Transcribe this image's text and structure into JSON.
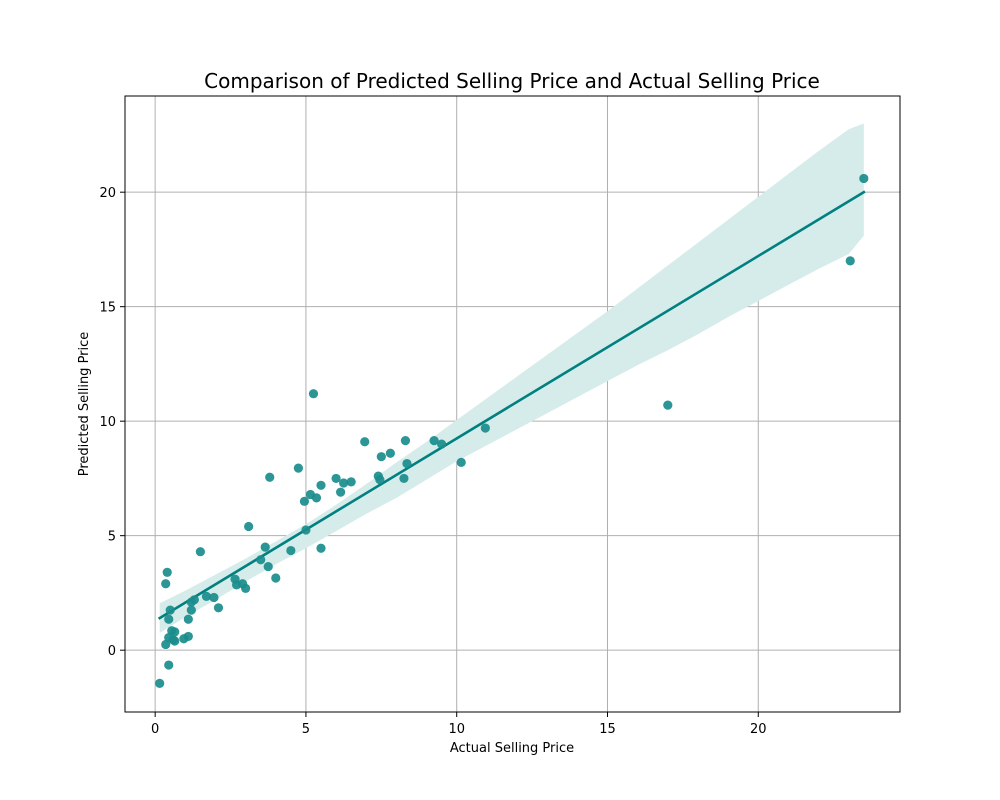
{
  "chart_data": {
    "type": "scatter",
    "title": "Comparison of Predicted Selling Price and Actual Selling Price",
    "xlabel": "Actual Selling Price",
    "ylabel": "Predicted Selling Price",
    "xlim": [
      -1,
      24.7
    ],
    "ylim": [
      -2.7,
      24.2
    ],
    "x_ticks": [
      0,
      5,
      10,
      15,
      20
    ],
    "y_ticks": [
      0,
      5,
      10,
      15,
      20
    ],
    "grid": true,
    "colors": {
      "points": "#1a8c8c",
      "regression_line": "#008080",
      "confidence_band": "#d6ecea",
      "grid": "#b0b0b0",
      "axes": "#000000"
    },
    "regression": {
      "x": [
        0.15,
        23.5
      ],
      "y": [
        1.4,
        20.0
      ]
    },
    "confidence_band": {
      "x": [
        0.15,
        1,
        2,
        3,
        4,
        5,
        6,
        7,
        8,
        9,
        10,
        11,
        12,
        13,
        14,
        15,
        16,
        17,
        18,
        19,
        20,
        21,
        22,
        23,
        23.5
      ],
      "upper": [
        2.05,
        2.6,
        3.3,
        4.0,
        4.75,
        5.5,
        6.35,
        7.25,
        8.2,
        9.1,
        10.05,
        11.0,
        11.95,
        12.9,
        13.85,
        14.8,
        15.8,
        16.8,
        17.8,
        18.8,
        19.8,
        20.8,
        21.8,
        22.75,
        23.0
      ],
      "lower": [
        0.75,
        1.45,
        2.2,
        3.0,
        3.75,
        4.45,
        5.2,
        5.95,
        6.65,
        7.45,
        8.25,
        8.95,
        9.65,
        10.35,
        11.05,
        11.75,
        12.45,
        13.1,
        13.8,
        14.55,
        15.25,
        15.95,
        16.65,
        17.3,
        18.1
      ]
    },
    "points": [
      {
        "x": 0.15,
        "y": -1.45
      },
      {
        "x": 0.35,
        "y": 0.25
      },
      {
        "x": 0.45,
        "y": 0.55
      },
      {
        "x": 0.45,
        "y": -0.65
      },
      {
        "x": 0.45,
        "y": 1.35
      },
      {
        "x": 0.5,
        "y": 1.75
      },
      {
        "x": 0.55,
        "y": 0.85
      },
      {
        "x": 0.6,
        "y": 0.45
      },
      {
        "x": 0.65,
        "y": 0.8
      },
      {
        "x": 0.65,
        "y": 0.4
      },
      {
        "x": 0.35,
        "y": 2.9
      },
      {
        "x": 0.4,
        "y": 3.4
      },
      {
        "x": 0.95,
        "y": 0.5
      },
      {
        "x": 1.1,
        "y": 0.6
      },
      {
        "x": 1.1,
        "y": 1.35
      },
      {
        "x": 1.2,
        "y": 1.75
      },
      {
        "x": 1.2,
        "y": 2.1
      },
      {
        "x": 1.3,
        "y": 2.2
      },
      {
        "x": 1.5,
        "y": 4.3
      },
      {
        "x": 1.7,
        "y": 2.35
      },
      {
        "x": 1.95,
        "y": 2.3
      },
      {
        "x": 2.1,
        "y": 1.85
      },
      {
        "x": 2.65,
        "y": 3.1
      },
      {
        "x": 2.7,
        "y": 2.85
      },
      {
        "x": 2.9,
        "y": 2.9
      },
      {
        "x": 3.0,
        "y": 2.7
      },
      {
        "x": 3.1,
        "y": 5.4
      },
      {
        "x": 3.5,
        "y": 3.95
      },
      {
        "x": 3.65,
        "y": 4.5
      },
      {
        "x": 3.75,
        "y": 3.65
      },
      {
        "x": 3.8,
        "y": 7.55
      },
      {
        "x": 4.0,
        "y": 3.15
      },
      {
        "x": 4.5,
        "y": 4.35
      },
      {
        "x": 4.75,
        "y": 7.95
      },
      {
        "x": 4.95,
        "y": 6.5
      },
      {
        "x": 5.0,
        "y": 5.25
      },
      {
        "x": 5.15,
        "y": 6.8
      },
      {
        "x": 5.25,
        "y": 11.2
      },
      {
        "x": 5.35,
        "y": 6.65
      },
      {
        "x": 5.5,
        "y": 4.45
      },
      {
        "x": 5.5,
        "y": 7.2
      },
      {
        "x": 6.0,
        "y": 7.5
      },
      {
        "x": 6.15,
        "y": 6.9
      },
      {
        "x": 6.25,
        "y": 7.3
      },
      {
        "x": 6.5,
        "y": 7.35
      },
      {
        "x": 6.95,
        "y": 9.1
      },
      {
        "x": 7.4,
        "y": 7.6
      },
      {
        "x": 7.45,
        "y": 7.45
      },
      {
        "x": 7.5,
        "y": 8.45
      },
      {
        "x": 7.8,
        "y": 8.6
      },
      {
        "x": 8.25,
        "y": 7.5
      },
      {
        "x": 8.3,
        "y": 9.15
      },
      {
        "x": 8.35,
        "y": 8.15
      },
      {
        "x": 9.25,
        "y": 9.15
      },
      {
        "x": 9.5,
        "y": 9.0
      },
      {
        "x": 10.15,
        "y": 8.2
      },
      {
        "x": 10.95,
        "y": 9.7
      },
      {
        "x": 17.0,
        "y": 10.7
      },
      {
        "x": 23.05,
        "y": 17.0
      },
      {
        "x": 23.5,
        "y": 20.6
      }
    ]
  }
}
